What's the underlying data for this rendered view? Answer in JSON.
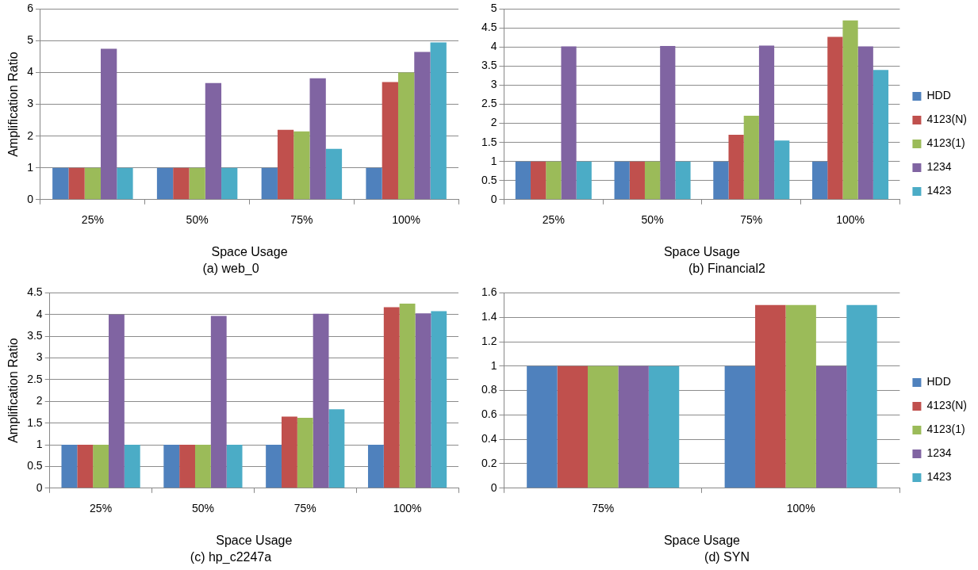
{
  "chart_data": [
    {
      "type": "bar",
      "title": "(a) web_0",
      "xlabel": "Space Usage",
      "ylabel": "Amplification Ratio",
      "categories": [
        "25%",
        "50%",
        "75%",
        "100%"
      ],
      "ylim": [
        0,
        6
      ],
      "yticks": [
        0,
        1,
        2,
        3,
        4,
        5,
        6
      ],
      "grid": "y",
      "series": [
        {
          "color": "#4f81bd",
          "values": [
            1,
            1,
            1,
            1
          ]
        },
        {
          "color": "#c0504d",
          "values": [
            1,
            1,
            2.2,
            3.7
          ]
        },
        {
          "color": "#9bbb59",
          "values": [
            1,
            1,
            2.15,
            4.0
          ]
        },
        {
          "color": "#8064a2",
          "values": [
            4.75,
            3.67,
            3.82,
            4.65
          ]
        },
        {
          "color": "#4bacc6",
          "values": [
            1,
            1,
            1.6,
            4.95
          ]
        }
      ]
    },
    {
      "type": "bar",
      "title": "(b) Financial2",
      "xlabel": "Space Usage",
      "categories": [
        "25%",
        "50%",
        "75%",
        "100%"
      ],
      "ylim": [
        0,
        5
      ],
      "yticks": [
        0,
        0.5,
        1,
        1.5,
        2,
        2.5,
        3,
        3.5,
        4,
        4.5,
        5
      ],
      "grid": "y",
      "legend": "right",
      "series": [
        {
          "name": "HDD",
          "color": "#4f81bd",
          "values": [
            1,
            1,
            1,
            1
          ]
        },
        {
          "name": "4123(N)",
          "color": "#c0504d",
          "values": [
            1,
            1,
            1.7,
            4.27
          ]
        },
        {
          "name": "4123(1)",
          "color": "#9bbb59",
          "values": [
            1,
            1,
            2.2,
            4.7
          ]
        },
        {
          "name": "1234",
          "color": "#8064a2",
          "values": [
            4.02,
            4.03,
            4.04,
            4.02
          ]
        },
        {
          "name": "1423",
          "color": "#4bacc6",
          "values": [
            1,
            1,
            1.55,
            3.4
          ]
        }
      ]
    },
    {
      "type": "bar",
      "title": "(c) hp_c2247a",
      "xlabel": "Space Usage",
      "ylabel": "Amplification Ratio",
      "categories": [
        "25%",
        "50%",
        "75%",
        "100%"
      ],
      "ylim": [
        0,
        4.5
      ],
      "yticks": [
        0,
        0.5,
        1,
        1.5,
        2,
        2.5,
        3,
        3.5,
        4,
        4.5
      ],
      "grid": "y",
      "series": [
        {
          "color": "#4f81bd",
          "values": [
            1,
            1,
            1,
            1
          ]
        },
        {
          "color": "#c0504d",
          "values": [
            1,
            1,
            1.65,
            4.17
          ]
        },
        {
          "color": "#9bbb59",
          "values": [
            1,
            1,
            1.62,
            4.25
          ]
        },
        {
          "color": "#8064a2",
          "values": [
            4.0,
            3.97,
            4.02,
            4.03
          ]
        },
        {
          "color": "#4bacc6",
          "values": [
            1,
            1,
            1.82,
            4.08
          ]
        }
      ]
    },
    {
      "type": "bar",
      "title": "(d) SYN",
      "xlabel": "Space Usage",
      "categories": [
        "75%",
        "100%"
      ],
      "ylim": [
        0,
        1.6
      ],
      "yticks": [
        0,
        0.2,
        0.4,
        0.6,
        0.8,
        1,
        1.2,
        1.4,
        1.6
      ],
      "grid": "y",
      "legend": "right",
      "series": [
        {
          "name": "HDD",
          "color": "#4f81bd",
          "values": [
            1,
            1
          ]
        },
        {
          "name": "4123(N)",
          "color": "#c0504d",
          "values": [
            1,
            1.5
          ]
        },
        {
          "name": "4123(1)",
          "color": "#9bbb59",
          "values": [
            1,
            1.5
          ]
        },
        {
          "name": "1234",
          "color": "#8064a2",
          "values": [
            1,
            1
          ]
        },
        {
          "name": "1423",
          "color": "#4bacc6",
          "values": [
            1,
            1.5
          ]
        }
      ]
    }
  ]
}
